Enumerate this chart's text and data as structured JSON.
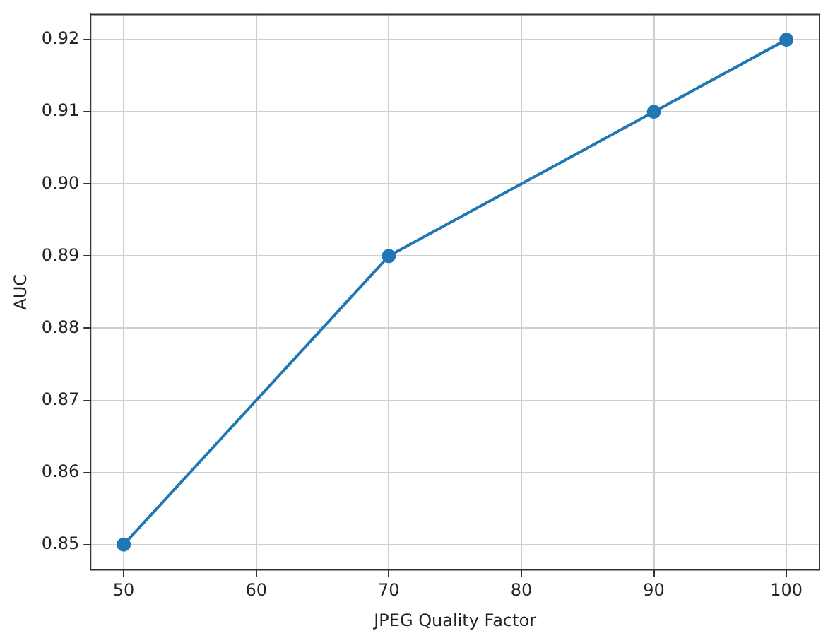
{
  "chart_data": {
    "type": "line",
    "xlabel": "JPEG Quality Factor",
    "ylabel": "AUC",
    "x": [
      50,
      70,
      90,
      100
    ],
    "series": [
      {
        "color": "#1f77b4",
        "values": [
          0.85,
          0.89,
          0.91,
          0.92
        ]
      }
    ],
    "xlim": [
      47.5,
      102.5
    ],
    "xticks": [
      50,
      60,
      70,
      80,
      90,
      100
    ],
    "ylim": [
      0.8465,
      0.9235
    ],
    "yticks": [
      0.85,
      0.86,
      0.87,
      0.88,
      0.89,
      {
        "value": 0.9,
        "label": "0.90"
      },
      0.91,
      0.92
    ],
    "grid": true,
    "marker": "circle",
    "line_style": "solid",
    "legend": false
  }
}
